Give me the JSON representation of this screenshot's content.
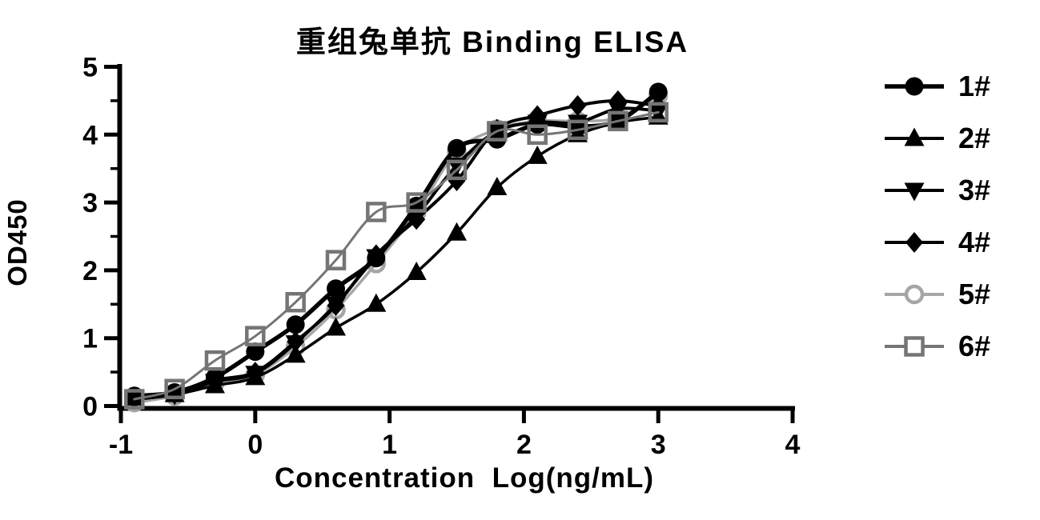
{
  "figure": {
    "title": "重组兔单抗 Binding ELISA",
    "y_axis_title": "OD450",
    "x_axis_title": "Concentration  Log(ng/mL)"
  },
  "chart_data": {
    "type": "line",
    "title": "重组兔单抗 Binding ELISA",
    "xlabel": "Concentration  Log(ng/mL)",
    "ylabel": "OD450",
    "xlim": [
      -1,
      4
    ],
    "ylim": [
      0,
      5
    ],
    "x_ticks": [
      "-1",
      "0",
      "1",
      "2",
      "3",
      "4"
    ],
    "y_ticks": [
      "0",
      "1",
      "2",
      "3",
      "4",
      "5"
    ],
    "y_minor_tick_step": 0.5,
    "grid": false,
    "legend_position": "right",
    "x": [
      -0.9,
      -0.6,
      -0.3,
      0.0,
      0.3,
      0.6,
      0.9,
      1.2,
      1.5,
      1.8,
      2.1,
      2.4,
      2.7,
      3.0
    ],
    "series": [
      {
        "name": "1#",
        "marker": "circle-filled",
        "color": "#000000",
        "line_width": 5.5,
        "values": [
          0.15,
          0.2,
          0.42,
          0.8,
          1.2,
          1.73,
          2.18,
          2.95,
          3.8,
          3.93,
          4.15,
          4.12,
          4.2,
          4.63
        ]
      },
      {
        "name": "2#",
        "marker": "triangle-up-filled",
        "color": "#000000",
        "line_width": 3.5,
        "values": [
          0.12,
          0.17,
          0.3,
          0.42,
          0.75,
          1.15,
          1.5,
          1.97,
          2.55,
          3.22,
          3.68,
          4.0,
          4.18,
          4.26
        ]
      },
      {
        "name": "3#",
        "marker": "triangle-down-filled",
        "color": "#000000",
        "line_width": 4,
        "values": [
          0.1,
          0.17,
          0.36,
          0.48,
          0.93,
          1.5,
          2.2,
          2.8,
          3.55,
          4.05,
          4.18,
          4.18,
          4.38,
          4.35
        ]
      },
      {
        "name": "4#",
        "marker": "diamond-filled",
        "color": "#000000",
        "line_width": 4,
        "values": [
          0.1,
          0.18,
          0.38,
          0.5,
          0.95,
          1.48,
          2.23,
          2.75,
          3.32,
          4.08,
          4.28,
          4.43,
          4.5,
          4.42
        ]
      },
      {
        "name": "5#",
        "marker": "circle-open",
        "color": "#a6a6a6",
        "line_width": 3.5,
        "values": [
          0.05,
          0.15,
          0.34,
          0.46,
          0.87,
          1.42,
          2.1,
          2.85,
          3.75,
          4.08,
          4.2,
          4.2,
          4.25,
          4.58
        ]
      },
      {
        "name": "6#",
        "marker": "square-open",
        "color": "#757575",
        "line_width": 3,
        "values": [
          0.1,
          0.25,
          0.67,
          1.03,
          1.53,
          2.15,
          2.86,
          3.0,
          3.48,
          4.05,
          4.0,
          4.07,
          4.2,
          4.33
        ]
      }
    ]
  }
}
